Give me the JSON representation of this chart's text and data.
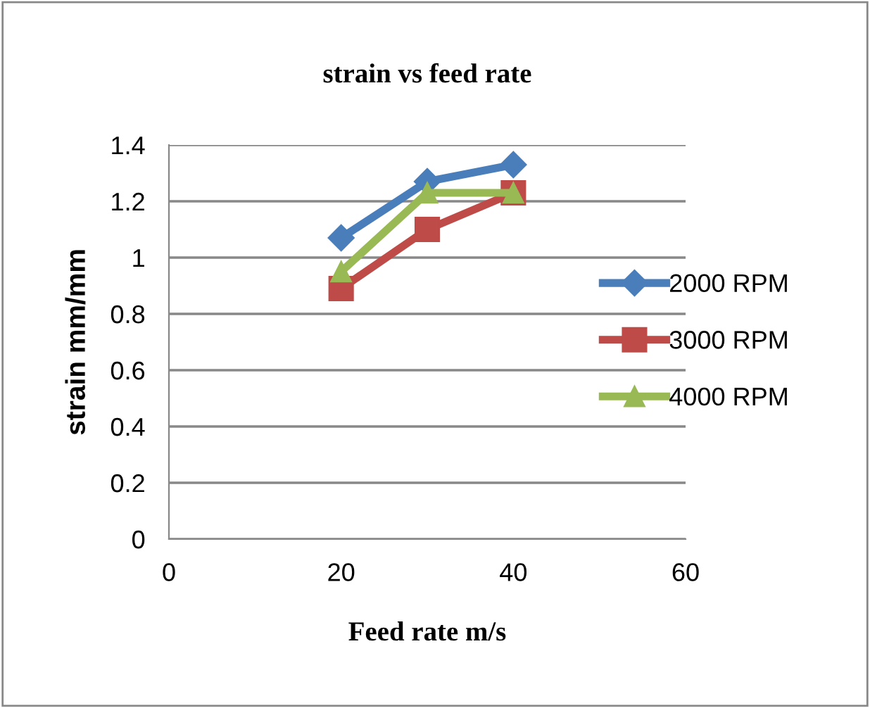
{
  "chart_data": {
    "type": "line",
    "title": "strain vs feed rate",
    "xlabel": "Feed rate m/s",
    "ylabel": "strain mm/mm",
    "x": [
      20,
      30,
      40
    ],
    "series": [
      {
        "name": "2000 RPM",
        "color": "#4a7ebb",
        "marker": "diamond",
        "values": [
          1.07,
          1.27,
          1.33
        ]
      },
      {
        "name": "3000 RPM",
        "color": "#be4b48",
        "marker": "square",
        "values": [
          0.89,
          1.1,
          1.23
        ]
      },
      {
        "name": "4000 RPM",
        "color": "#98b954",
        "marker": "triangle",
        "values": [
          0.95,
          1.23,
          1.23
        ]
      }
    ],
    "xlim": [
      0,
      60
    ],
    "xticks": [
      0,
      20,
      40,
      60
    ],
    "ylim": [
      0,
      1.4
    ],
    "yticks": [
      0,
      0.2,
      0.4,
      0.6,
      0.8,
      1,
      1.2,
      1.4
    ],
    "grid": "y",
    "legend": "right",
    "line_style": "solid"
  }
}
